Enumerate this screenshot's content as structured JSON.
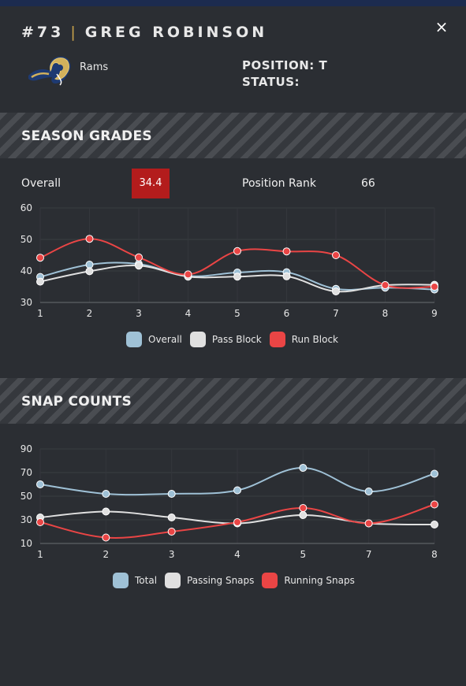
{
  "header": {
    "number": "#73",
    "separator": "|",
    "name": "GREG ROBINSON",
    "close_icon": "×",
    "team": "Rams",
    "position": "POSITION: T",
    "status": "STATUS:"
  },
  "season_grades": {
    "title": "SEASON GRADES",
    "overall_label": "Overall",
    "overall_value": "34.4",
    "rank_label": "Position Rank",
    "rank_value": "66"
  },
  "snap_counts": {
    "title": "SNAP COUNTS"
  },
  "colors": {
    "blue": "#9fc1d6",
    "white": "#e0e0e0",
    "red": "#ea4545",
    "grade_box": "#b31c1c"
  },
  "chart_data": [
    {
      "type": "line",
      "x": [
        1,
        2,
        3,
        4,
        5,
        6,
        7,
        8,
        9
      ],
      "ylim": [
        30,
        60
      ],
      "yticks": [
        30,
        40,
        50,
        60
      ],
      "series": [
        {
          "name": "Overall",
          "color": "#9fc1d6",
          "values": [
            38.1,
            42.0,
            42.2,
            38.4,
            39.5,
            39.6,
            34.3,
            34.7,
            34.1
          ]
        },
        {
          "name": "Pass Block",
          "color": "#e0e0e0",
          "values": [
            36.6,
            39.9,
            41.7,
            38.2,
            38.2,
            38.3,
            33.5,
            35.5,
            35.6
          ]
        },
        {
          "name": "Run Block",
          "color": "#ea4545",
          "values": [
            44.2,
            50.2,
            44.3,
            38.9,
            46.3,
            46.2,
            45.0,
            35.5,
            35.0
          ]
        }
      ]
    },
    {
      "type": "line",
      "x": [
        1,
        2,
        3,
        4,
        5,
        7,
        8
      ],
      "ylim": [
        10,
        90
      ],
      "yticks": [
        10,
        30,
        50,
        70,
        90
      ],
      "series": [
        {
          "name": "Total",
          "color": "#9fc1d6",
          "values": [
            60,
            52,
            52,
            55,
            74,
            54,
            69
          ]
        },
        {
          "name": "Passing Snaps",
          "color": "#e0e0e0",
          "values": [
            32,
            37,
            32,
            27,
            34,
            27,
            26
          ]
        },
        {
          "name": "Running Snaps",
          "color": "#ea4545",
          "values": [
            28,
            15,
            20,
            28,
            40,
            27,
            43
          ]
        }
      ]
    }
  ]
}
